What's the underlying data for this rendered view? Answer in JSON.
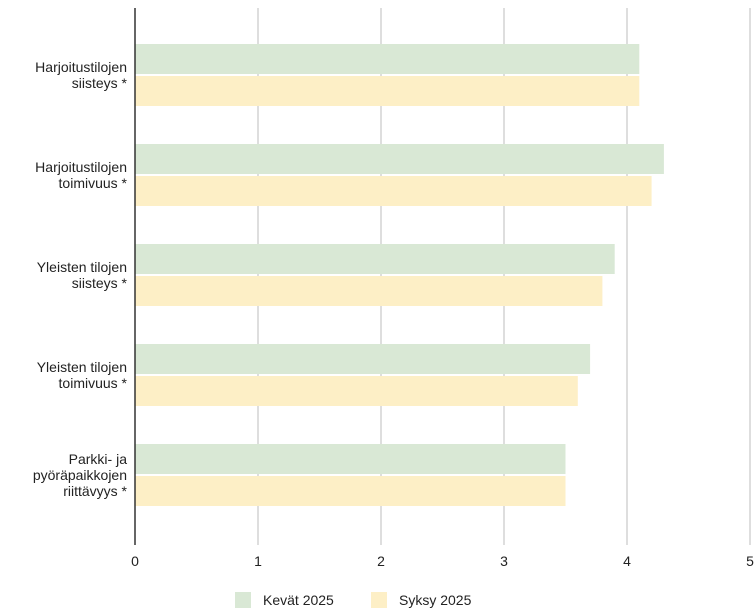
{
  "chart_data": {
    "type": "bar",
    "orientation": "horizontal",
    "categories": [
      [
        "Harjoitustilojen",
        "siisteys *"
      ],
      [
        "Harjoitustilojen",
        "toimivuus *"
      ],
      [
        "Yleisten tilojen",
        "siisteys *"
      ],
      [
        "Yleisten tilojen",
        "toimivuus *"
      ],
      [
        "Parkki- ja",
        "pyöräpaikkojen",
        "riittävyys *"
      ]
    ],
    "series": [
      {
        "name": "Kevät 2025",
        "values": [
          4.1,
          4.3,
          3.9,
          3.7,
          3.5
        ],
        "color": "#d9e8d5"
      },
      {
        "name": "Syksy 2025",
        "values": [
          4.1,
          4.2,
          3.8,
          3.6,
          3.5
        ],
        "color": "#fdefc6"
      }
    ],
    "xlim": [
      0,
      5
    ],
    "xticks": [
      "0",
      "1",
      "2",
      "3",
      "4",
      "5"
    ],
    "grid": true,
    "legend_position": "bottom",
    "grid_color": "#c8c8c8",
    "axis_color": "#333333"
  }
}
